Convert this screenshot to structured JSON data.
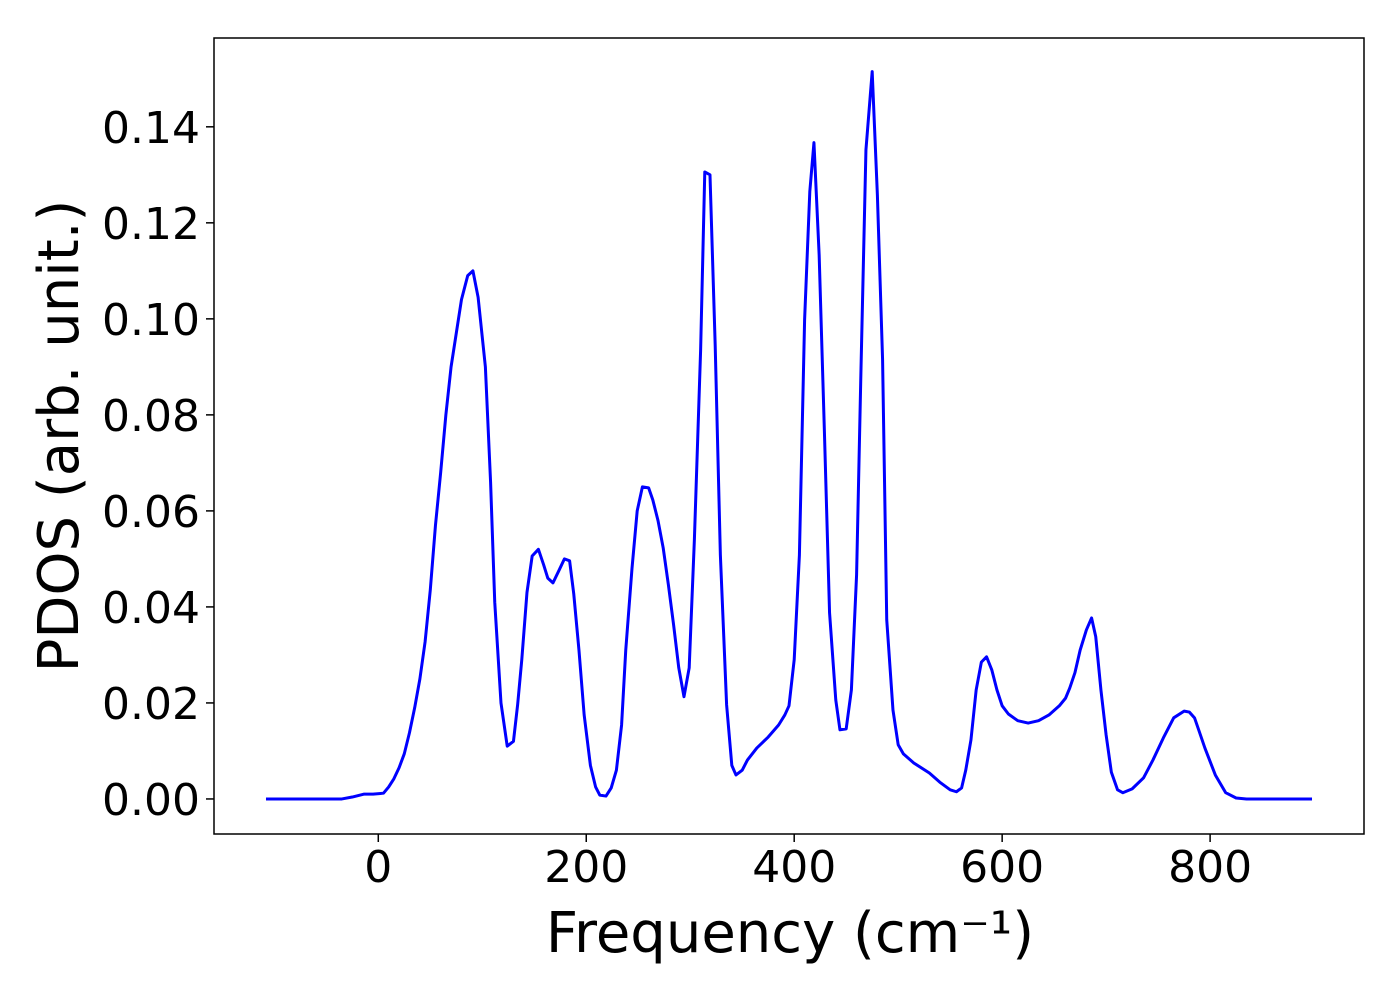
{
  "chart_data": {
    "type": "line",
    "xlabel": "Frequency (cm⁻¹)",
    "ylabel": "PDOS (arb. unit.)",
    "xlim": [
      -158,
      948
    ],
    "ylim": [
      -0.0073,
      0.1585
    ],
    "xticks": [
      0,
      200,
      400,
      600,
      800
    ],
    "yticks": [
      {
        "value": 0,
        "label": "0.00"
      },
      {
        "value": 0.02,
        "label": "0.02"
      },
      {
        "value": 0.04,
        "label": "0.04"
      },
      {
        "value": 0.06,
        "label": "0.06"
      },
      {
        "value": 0.08,
        "label": "0.08"
      },
      {
        "value": 0.1,
        "label": "0.10"
      },
      {
        "value": 0.12,
        "label": "0.12"
      },
      {
        "value": 0.14,
        "label": "0.14"
      }
    ],
    "grid": false,
    "x": [
      -108,
      -35,
      -25,
      -14,
      -5,
      5,
      10,
      15,
      20,
      25,
      30,
      35,
      40,
      45,
      50,
      55,
      60,
      65,
      70,
      75,
      80,
      86,
      91,
      96,
      103,
      108,
      112,
      118,
      124,
      130,
      134,
      138,
      143,
      148,
      154,
      159,
      163,
      168,
      174,
      179,
      184,
      188,
      193,
      198,
      204,
      209,
      213,
      219,
      224,
      229,
      234,
      238,
      244,
      249,
      254,
      260,
      264,
      269,
      274,
      279,
      284,
      289,
      294,
      299,
      304,
      310,
      314,
      319,
      324,
      329,
      335,
      340,
      344,
      350,
      355,
      364,
      375,
      385,
      391,
      395,
      400,
      405,
      410,
      415,
      419,
      424,
      429,
      434,
      440,
      444,
      450,
      455,
      460,
      464,
      469,
      475,
      480,
      485,
      489,
      495,
      500,
      505,
      515,
      530,
      540,
      550,
      556,
      561,
      565,
      570,
      575,
      580,
      585,
      590,
      595,
      600,
      606,
      615,
      625,
      635,
      645,
      655,
      661,
      665,
      670,
      675,
      681,
      686,
      690,
      695,
      700,
      705,
      711,
      716,
      725,
      736,
      745,
      755,
      765,
      775,
      780,
      785,
      789,
      795,
      805,
      815,
      825,
      835,
      898
    ],
    "series": [
      {
        "name": "PDOS",
        "color": "#0000ff",
        "values": [
          0,
          0,
          0.0004,
          0.001,
          0.001,
          0.0012,
          0.0025,
          0.0042,
          0.0065,
          0.0094,
          0.0138,
          0.019,
          0.025,
          0.0327,
          0.0435,
          0.057,
          0.068,
          0.08,
          0.09,
          0.097,
          0.104,
          0.109,
          0.11,
          0.1045,
          0.09,
          0.066,
          0.041,
          0.02,
          0.011,
          0.012,
          0.0196,
          0.029,
          0.043,
          0.0506,
          0.052,
          0.0488,
          0.046,
          0.045,
          0.0477,
          0.05,
          0.0496,
          0.0427,
          0.031,
          0.0175,
          0.007,
          0.0025,
          0.0008,
          0.0006,
          0.0023,
          0.006,
          0.0154,
          0.031,
          0.048,
          0.06,
          0.065,
          0.0648,
          0.0623,
          0.058,
          0.0523,
          0.0446,
          0.0363,
          0.0273,
          0.0213,
          0.0273,
          0.054,
          0.0935,
          0.1306,
          0.13,
          0.0946,
          0.0508,
          0.0196,
          0.007,
          0.005,
          0.006,
          0.0081,
          0.0106,
          0.0129,
          0.0154,
          0.0175,
          0.0194,
          0.029,
          0.0508,
          0.0998,
          0.1265,
          0.1367,
          0.1133,
          0.0769,
          0.0388,
          0.0206,
          0.0144,
          0.0146,
          0.0227,
          0.0467,
          0.0873,
          0.1352,
          0.1515,
          0.1258,
          0.0915,
          0.0373,
          0.0185,
          0.0113,
          0.0094,
          0.0075,
          0.0054,
          0.0035,
          0.0019,
          0.0015,
          0.0023,
          0.006,
          0.0123,
          0.0227,
          0.0285,
          0.0296,
          0.0269,
          0.0227,
          0.0194,
          0.0177,
          0.0163,
          0.0158,
          0.0163,
          0.0175,
          0.0194,
          0.021,
          0.0231,
          0.0263,
          0.031,
          0.0352,
          0.0377,
          0.0338,
          0.0227,
          0.0133,
          0.0056,
          0.0019,
          0.0013,
          0.0021,
          0.0044,
          0.0081,
          0.0127,
          0.0169,
          0.0183,
          0.0181,
          0.0169,
          0.0144,
          0.0106,
          0.005,
          0.0013,
          0.0002,
          0,
          0
        ]
      }
    ]
  }
}
